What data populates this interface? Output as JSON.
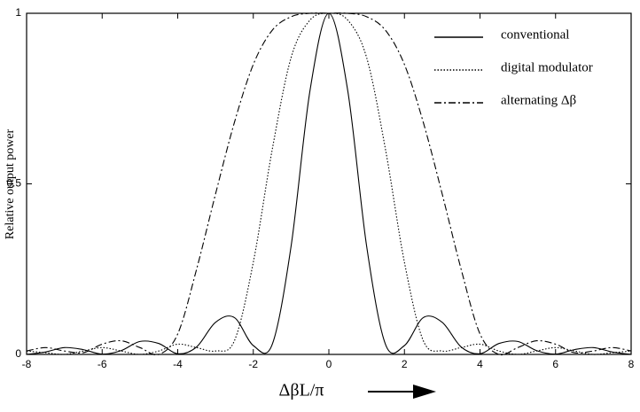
{
  "chart_data": {
    "type": "line",
    "xlabel": "ΔβL/π",
    "ylabel": "Relative output power",
    "x": [
      -8,
      -7.5,
      -7,
      -6.5,
      -6,
      -5.5,
      -5,
      -4.5,
      -4,
      -3.5,
      -3,
      -2.5,
      -2,
      -1.5,
      -1,
      -0.5,
      0,
      0.5,
      1,
      1.5,
      2,
      2.5,
      3,
      3.5,
      4,
      4.5,
      5,
      5.5,
      6,
      6.5,
      7,
      7.5,
      8
    ],
    "series": [
      {
        "name": "conventional",
        "color": "#000000",
        "dash": "none",
        "values": [
          0,
          0.007,
          0.02,
          0.014,
          0.001,
          0.011,
          0.038,
          0.032,
          0.002,
          0.022,
          0.094,
          0.108,
          0.026,
          0.029,
          0.317,
          0.773,
          1,
          0.773,
          0.317,
          0.029,
          0.026,
          0.108,
          0.094,
          0.022,
          0.002,
          0.032,
          0.038,
          0.011,
          0.001,
          0.014,
          0.02,
          0.007,
          0
        ]
      },
      {
        "name": "digital modulator",
        "color": "#000000",
        "dash": "1.5 2",
        "values": [
          0.01,
          0.005,
          0,
          0.01,
          0.02,
          0.01,
          0,
          0.01,
          0.03,
          0.02,
          0.01,
          0.04,
          0.27,
          0.6,
          0.87,
          0.98,
          1,
          0.98,
          0.87,
          0.6,
          0.27,
          0.04,
          0.01,
          0.02,
          0.03,
          0.01,
          0,
          0.01,
          0.02,
          0.01,
          0,
          0.005,
          0.01
        ]
      },
      {
        "name": "alternating Δβ",
        "color": "#000000",
        "dash": "8 3 2 3",
        "values": [
          0.01,
          0.02,
          0.01,
          0.005,
          0.03,
          0.04,
          0.02,
          0,
          0.06,
          0.25,
          0.47,
          0.68,
          0.85,
          0.95,
          0.99,
          1,
          1,
          1,
          0.99,
          0.95,
          0.85,
          0.68,
          0.47,
          0.25,
          0.06,
          0,
          0.02,
          0.04,
          0.03,
          0.005,
          0.01,
          0.02,
          0.01
        ]
      }
    ],
    "xlim": [
      -8,
      8
    ],
    "xticks": [
      -8,
      -6,
      -4,
      -2,
      0,
      2,
      4,
      6,
      8
    ],
    "ylim": [
      0,
      1
    ],
    "yticks": [
      0,
      0.5,
      1
    ],
    "grid": false,
    "legend": "upper right"
  }
}
